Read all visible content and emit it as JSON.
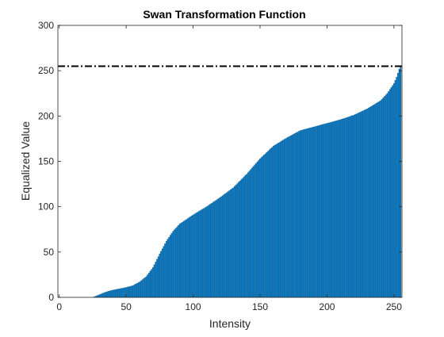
{
  "chart_data": {
    "type": "bar",
    "title": "Swan Transformation Function",
    "xlabel": "Intensity",
    "ylabel": "Equalized Value",
    "xlim": [
      -1,
      256
    ],
    "ylim": [
      0,
      300
    ],
    "xticks": [
      0,
      50,
      100,
      150,
      200,
      250
    ],
    "yticks": [
      0,
      50,
      100,
      150,
      200,
      250,
      300
    ],
    "xtick_labels": [
      "0",
      "50",
      "100",
      "150",
      "200",
      "250"
    ],
    "ytick_labels": [
      "0",
      "50",
      "100",
      "150",
      "200",
      "250",
      "300"
    ],
    "grid": false,
    "bar_color": "#0072BD",
    "reference_line": {
      "y": 255,
      "style": "dash-dot",
      "color": "#000000"
    },
    "curve_knots": [
      [
        0,
        0
      ],
      [
        25,
        0
      ],
      [
        30,
        3
      ],
      [
        35,
        6
      ],
      [
        40,
        8
      ],
      [
        50,
        11
      ],
      [
        55,
        13
      ],
      [
        60,
        17
      ],
      [
        65,
        23
      ],
      [
        70,
        33
      ],
      [
        75,
        48
      ],
      [
        80,
        62
      ],
      [
        85,
        73
      ],
      [
        90,
        81
      ],
      [
        100,
        91
      ],
      [
        110,
        100
      ],
      [
        120,
        110
      ],
      [
        130,
        121
      ],
      [
        140,
        136
      ],
      [
        150,
        153
      ],
      [
        160,
        167
      ],
      [
        170,
        176
      ],
      [
        180,
        184
      ],
      [
        190,
        188
      ],
      [
        200,
        192
      ],
      [
        210,
        196
      ],
      [
        220,
        201
      ],
      [
        230,
        208
      ],
      [
        240,
        217
      ],
      [
        245,
        225
      ],
      [
        250,
        236
      ],
      [
        252,
        243
      ],
      [
        254,
        252
      ],
      [
        255,
        255
      ]
    ]
  }
}
